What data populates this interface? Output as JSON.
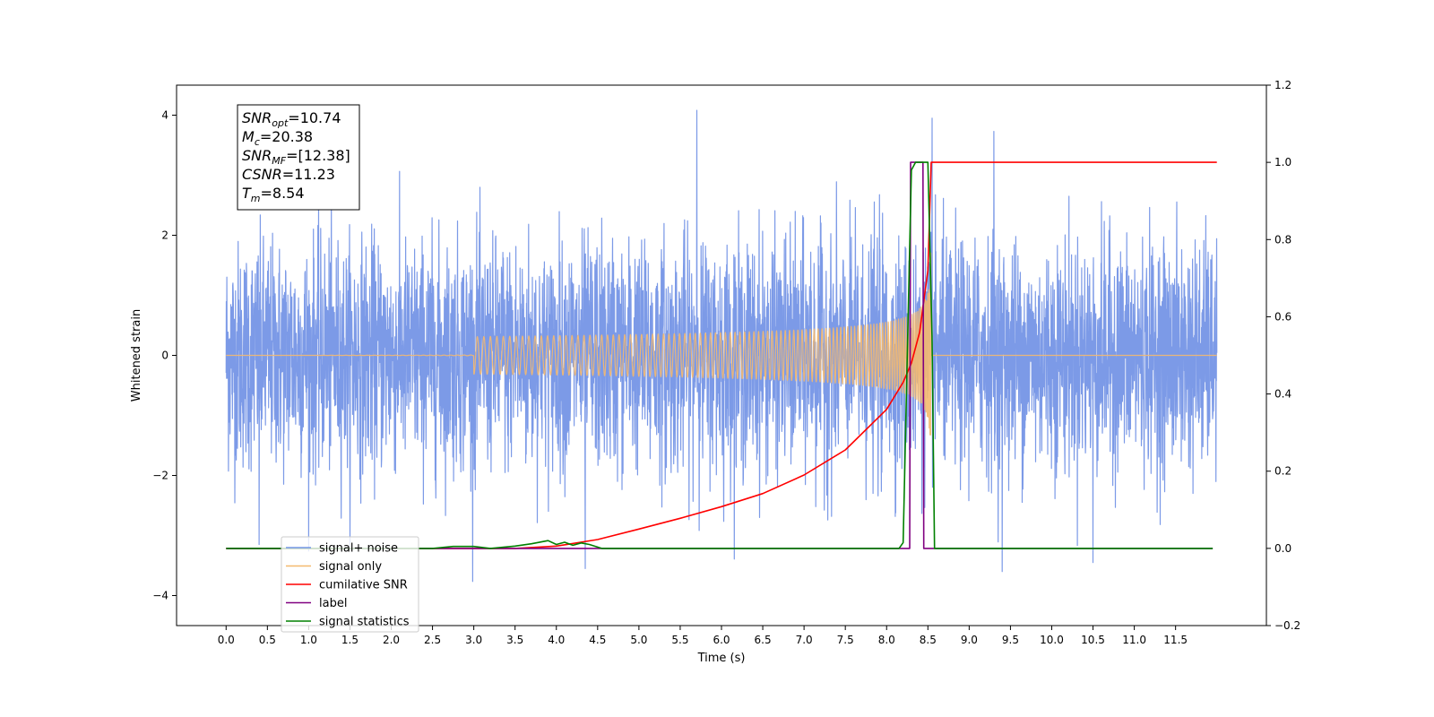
{
  "chart_data": {
    "type": "line",
    "xlabel": "Time (s)",
    "ylabel": "Whitened strain",
    "ylabel_right": "",
    "xlim": [
      -0.6,
      12.6
    ],
    "ylim": [
      -4.5,
      4.5
    ],
    "ylim_right": [
      -0.2,
      1.2
    ],
    "x_ticks": [
      0.0,
      0.5,
      1.0,
      1.5,
      2.0,
      2.5,
      3.0,
      3.5,
      4.0,
      4.5,
      5.0,
      5.5,
      6.0,
      6.5,
      7.0,
      7.5,
      8.0,
      8.5,
      9.0,
      9.5,
      10.0,
      10.5,
      11.0,
      11.5
    ],
    "x_tick_labels": [
      "0.0",
      "0.5",
      "1.0",
      "1.5",
      "2.0",
      "2.5",
      "3.0",
      "3.5",
      "4.0",
      "4.5",
      "5.0",
      "5.5",
      "6.0",
      "6.5",
      "7.0",
      "7.5",
      "8.0",
      "8.5",
      "9.0",
      "9.5",
      "10.0",
      "10.5",
      "11.0",
      "11.5"
    ],
    "y_ticks": [
      -4,
      -2,
      0,
      2,
      4
    ],
    "y_tick_labels": [
      "−4",
      "−2",
      "0",
      "2",
      "4"
    ],
    "y_right_ticks": [
      -0.2,
      0.0,
      0.2,
      0.4,
      0.6,
      0.8,
      1.0,
      1.2
    ],
    "y_right_tick_labels": [
      "−0.2",
      "0.0",
      "0.2",
      "0.4",
      "0.6",
      "0.8",
      "1.0",
      "1.2"
    ],
    "grid": false,
    "legend_placement": "lower-left",
    "annotation_box": {
      "snr_opt": "=10.74",
      "mc": "=20.38",
      "snr_mf": "=[12.38]",
      "csnr": "=11.23",
      "tm": "=8.54"
    },
    "series": [
      {
        "name": "signal+ noise",
        "axis": "left",
        "color": "#7595e6",
        "x_range": [
          0.0,
          12.0
        ],
        "typical_amplitude": 1.2,
        "peak_values": [
          {
            "x": 5.7,
            "y": 4.08
          },
          {
            "x": 8.55,
            "y": 3.95
          },
          {
            "x": 9.3,
            "y": 3.73
          },
          {
            "x": 9.4,
            "y": -3.6
          },
          {
            "x": 4.35,
            "y": -3.55
          },
          {
            "x": 10.5,
            "y": -3.45
          },
          {
            "x": 0.4,
            "y": -3.15
          }
        ]
      },
      {
        "name": "signal only",
        "axis": "left",
        "color": "#f5b96e",
        "x_range": [
          0.0,
          12.0
        ],
        "chirp": {
          "start": 3.0,
          "merger": 8.54,
          "peak_amplitude": 1.8
        }
      },
      {
        "name": "cumilative SNR",
        "axis": "right",
        "color": "#ff0000",
        "x": [
          0.0,
          3.5,
          4.0,
          4.5,
          5.0,
          5.5,
          6.0,
          6.5,
          7.0,
          7.5,
          8.0,
          8.2,
          8.3,
          8.4,
          8.5,
          8.54,
          8.55,
          12.0
        ],
        "y": [
          0.0,
          0.0,
          0.006,
          0.023,
          0.05,
          0.078,
          0.108,
          0.142,
          0.19,
          0.255,
          0.36,
          0.43,
          0.48,
          0.56,
          0.72,
          1.0,
          1.0,
          1.0
        ]
      },
      {
        "name": "label",
        "axis": "right",
        "color": "#800080",
        "x": [
          0.0,
          8.28,
          8.29,
          8.44,
          8.45,
          11.95
        ],
        "y": [
          0.0,
          0.0,
          1.0,
          1.0,
          0.0,
          0.0
        ]
      },
      {
        "name": "signal statistics",
        "axis": "right",
        "color": "#008000",
        "x": [
          0.0,
          2.5,
          2.75,
          3.0,
          3.2,
          3.5,
          3.7,
          3.9,
          4.0,
          4.1,
          4.2,
          4.3,
          4.4,
          4.55,
          4.6,
          8.15,
          8.2,
          8.25,
          8.3,
          8.35,
          8.5,
          8.55,
          8.58,
          11.95
        ],
        "y": [
          0.0,
          0.0,
          0.005,
          0.005,
          0.0,
          0.006,
          0.012,
          0.02,
          0.01,
          0.016,
          0.008,
          0.014,
          0.01,
          0.0,
          0.0,
          0.0,
          0.015,
          0.5,
          0.98,
          1.0,
          1.0,
          0.55,
          0.0,
          0.0
        ]
      }
    ],
    "legend_entries": [
      "signal+ noise",
      "signal only",
      "cumilative SNR",
      "label",
      "signal statistics"
    ]
  }
}
